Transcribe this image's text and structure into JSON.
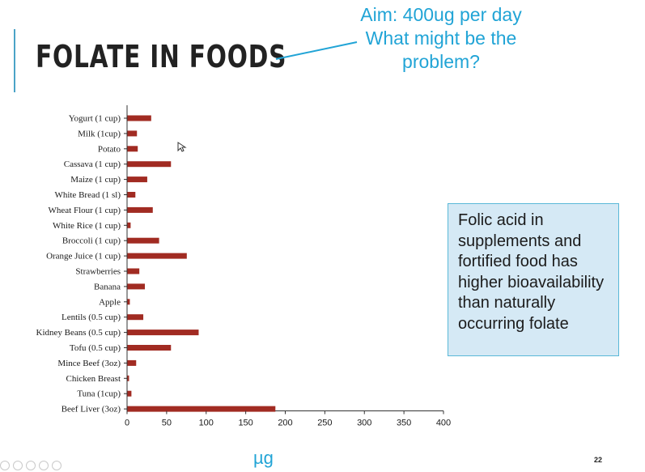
{
  "slide": {
    "title": "FOLATE IN FOODS",
    "aim_lines": [
      "Aim: 400ug per day",
      "What might be the",
      "problem?"
    ],
    "info_box": "Folic acid in supplements and fortified food has higher bioavailability than naturally occurring folate",
    "unit_label": "µg",
    "page_number": "22",
    "accent_color": "#21a4d6"
  },
  "chart_data": {
    "type": "bar",
    "orientation": "horizontal",
    "categories": [
      "Yogurt (1 cup)",
      "Milk (1cup)",
      "Potato",
      "Cassava (1 cup)",
      "Maize (1 cup)",
      "White Bread (1 sl)",
      "Wheat Flour (1 cup)",
      "White Rice (1 cup)",
      "Broccoli (1 cup)",
      "Orange Juice (1 cup)",
      "Strawberries",
      "Banana",
      "Apple",
      "Lentils (0.5 cup)",
      "Kidney Beans (0.5 cup)",
      "Tofu (0.5 cup)",
      "Mince Beef (3oz)",
      "Chicken Breast",
      "Tuna (1cup)",
      "Beef Liver (3oz)"
    ],
    "values": [
      30,
      12,
      13,
      55,
      25,
      10,
      32,
      4,
      40,
      75,
      15,
      22,
      3,
      20,
      90,
      55,
      11,
      2,
      5,
      187
    ],
    "xlabel": "µg",
    "xlim": [
      0,
      400
    ],
    "xticks": [
      0,
      50,
      100,
      150,
      200,
      250,
      300,
      350,
      400
    ],
    "bar_color": "#a12b22",
    "grid": false
  }
}
